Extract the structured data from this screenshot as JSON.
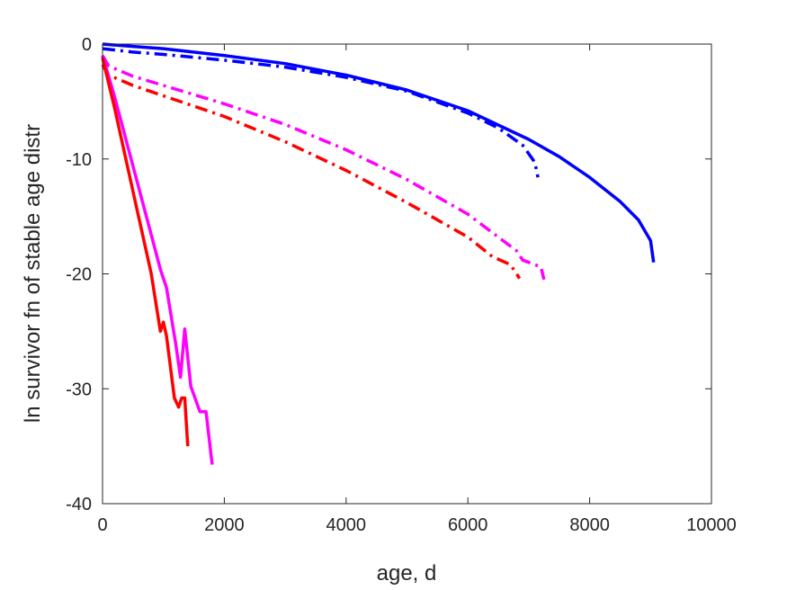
{
  "chart_data": {
    "type": "line",
    "title": "",
    "xlabel": "age, d",
    "ylabel": "ln survivor fn of stable age distr",
    "xlim": [
      0,
      10000
    ],
    "ylim": [
      -40,
      0
    ],
    "xticks": [
      0,
      2000,
      4000,
      6000,
      8000,
      10000
    ],
    "yticks": [
      0,
      -10,
      -20,
      -30,
      -40
    ],
    "xtick_labels": [
      "0",
      "2000",
      "4000",
      "6000",
      "8000",
      "10000"
    ],
    "ytick_labels": [
      "0",
      "-10",
      "-20",
      "-30",
      "-40"
    ],
    "grid": false,
    "legend": "none",
    "series": [
      {
        "color": "#0000ff",
        "style": "solid",
        "x": [
          0,
          500,
          1000,
          2000,
          3000,
          4000,
          5000,
          6000,
          7000,
          7500,
          8000,
          8500,
          8800,
          9000,
          9050
        ],
        "y": [
          0,
          -0.2,
          -0.4,
          -1.0,
          -1.7,
          -2.7,
          -4.0,
          -5.8,
          -8.3,
          -9.8,
          -11.6,
          -13.7,
          -15.3,
          -17.1,
          -19.0
        ]
      },
      {
        "color": "#0000ff",
        "style": "dashdot",
        "x": [
          0,
          500,
          1000,
          2000,
          3000,
          4000,
          5000,
          6000,
          6500,
          6900,
          7100,
          7150
        ],
        "y": [
          -0.4,
          -0.7,
          -0.9,
          -1.4,
          -2.0,
          -2.9,
          -4.1,
          -6.0,
          -7.3,
          -8.8,
          -10.3,
          -11.6
        ]
      },
      {
        "color": "#ff00ff",
        "style": "dashdot",
        "x": [
          0,
          100,
          500,
          1000,
          2000,
          3000,
          4000,
          5000,
          6000,
          6500,
          6800,
          6900,
          7000,
          7200,
          7250
        ],
        "y": [
          -1.0,
          -1.9,
          -2.8,
          -3.6,
          -5.2,
          -7.0,
          -9.2,
          -11.8,
          -14.8,
          -16.8,
          -18.0,
          -18.8,
          -19.0,
          -19.4,
          -20.5
        ]
      },
      {
        "color": "#ff0000",
        "style": "dashdot",
        "x": [
          0,
          100,
          500,
          1000,
          2000,
          3000,
          4000,
          5000,
          6000,
          6400,
          6700,
          6850
        ],
        "y": [
          -1.8,
          -2.7,
          -3.6,
          -4.5,
          -6.3,
          -8.5,
          -11.0,
          -13.8,
          -16.8,
          -18.5,
          -19.2,
          -20.4
        ]
      },
      {
        "color": "#ff00ff",
        "style": "solid",
        "x": [
          0,
          200,
          500,
          800,
          950,
          1050,
          1200,
          1280,
          1350,
          1450,
          1600,
          1700,
          1800
        ],
        "y": [
          -1.0,
          -4.6,
          -10.6,
          -16.6,
          -19.6,
          -21.2,
          -26.0,
          -29.0,
          -24.8,
          -29.8,
          -32.0,
          -32.0,
          -36.6
        ]
      },
      {
        "color": "#ff0000",
        "style": "solid",
        "x": [
          0,
          200,
          500,
          800,
          950,
          1000,
          1050,
          1180,
          1250,
          1300,
          1350,
          1400
        ],
        "y": [
          -1.2,
          -5.6,
          -12.8,
          -20.0,
          -25.0,
          -24.2,
          -25.4,
          -30.8,
          -31.6,
          -30.8,
          -30.8,
          -35.0
        ]
      }
    ]
  }
}
